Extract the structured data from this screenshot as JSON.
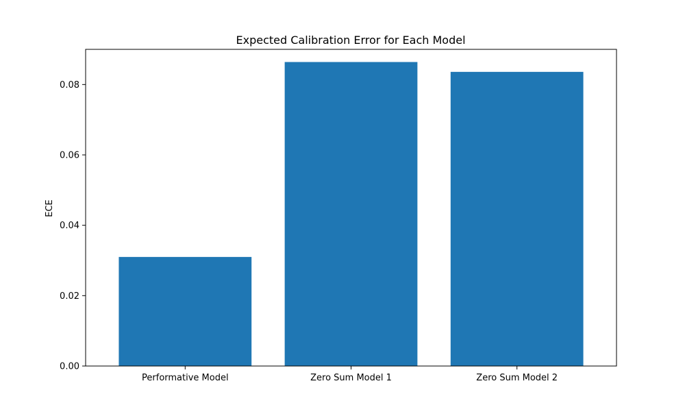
{
  "chart_data": {
    "type": "bar",
    "title": "Expected Calibration Error for Each Model",
    "xlabel": "",
    "ylabel": "ECE",
    "categories": [
      "Performative Model",
      "Zero Sum Model 1",
      "Zero Sum Model 2"
    ],
    "values": [
      0.031,
      0.0864,
      0.0836
    ],
    "ylim": [
      0,
      0.09
    ],
    "yticks": [
      0.0,
      0.02,
      0.04,
      0.06,
      0.08
    ],
    "ytick_labels": [
      "0.00",
      "0.02",
      "0.04",
      "0.06",
      "0.08"
    ],
    "grid": false,
    "legend": "none",
    "colors": {
      "bar": "#1f77b4",
      "axes": "#000000",
      "background": "#ffffff"
    }
  }
}
